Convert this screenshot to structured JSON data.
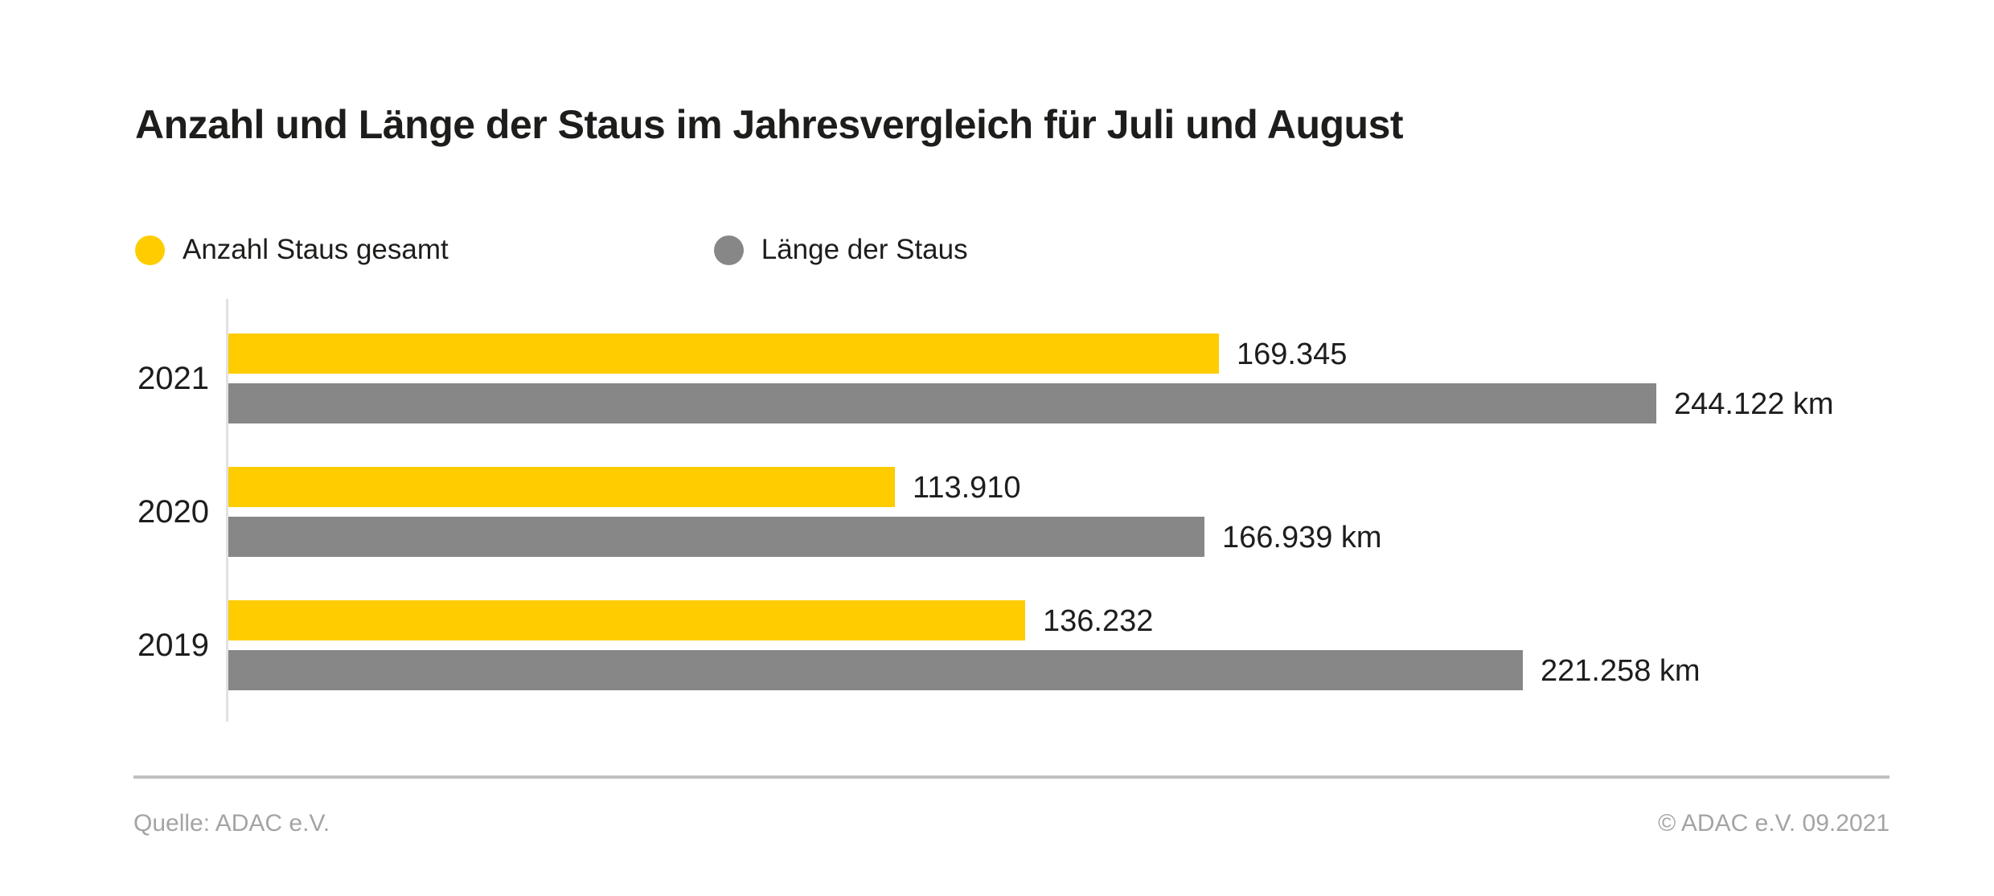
{
  "title": "Anzahl und Länge der Staus im Jahresvergleich für Juli und August",
  "colors": {
    "bar_yellow": "#FFCC00",
    "bar_gray": "#878787",
    "text": "#1D1D1B",
    "muted_text": "#A4A4A4",
    "axis_line": "#E2E2E2",
    "divider": "#C0C0C0"
  },
  "legend": [
    {
      "label": "Anzahl Staus gesamt",
      "color": "#FFCC00"
    },
    {
      "label": "Länge der Staus",
      "color": "#878787"
    }
  ],
  "chart_data": {
    "type": "bar",
    "orientation": "horizontal",
    "title": "Anzahl und Länge der Staus im Jahresvergleich für Juli und August",
    "categories": [
      "2021",
      "2020",
      "2019"
    ],
    "series": [
      {
        "name": "Anzahl Staus gesamt",
        "color": "#FFCC00",
        "values": [
          169345,
          113910,
          136232
        ],
        "labels": [
          "169.345",
          "113.910",
          "136.232"
        ]
      },
      {
        "name": "Länge der Staus",
        "color": "#878787",
        "values": [
          244122,
          166939,
          221258
        ],
        "labels": [
          "244.122 km",
          "166.939 km",
          "221.258 km"
        ]
      }
    ],
    "xlabel": "",
    "ylabel": "",
    "xmax": 244122,
    "grid": false,
    "legend_position": "top"
  },
  "footer": {
    "source": "Quelle: ADAC e.V.",
    "copyright": "© ADAC e.V. 09.2021"
  }
}
